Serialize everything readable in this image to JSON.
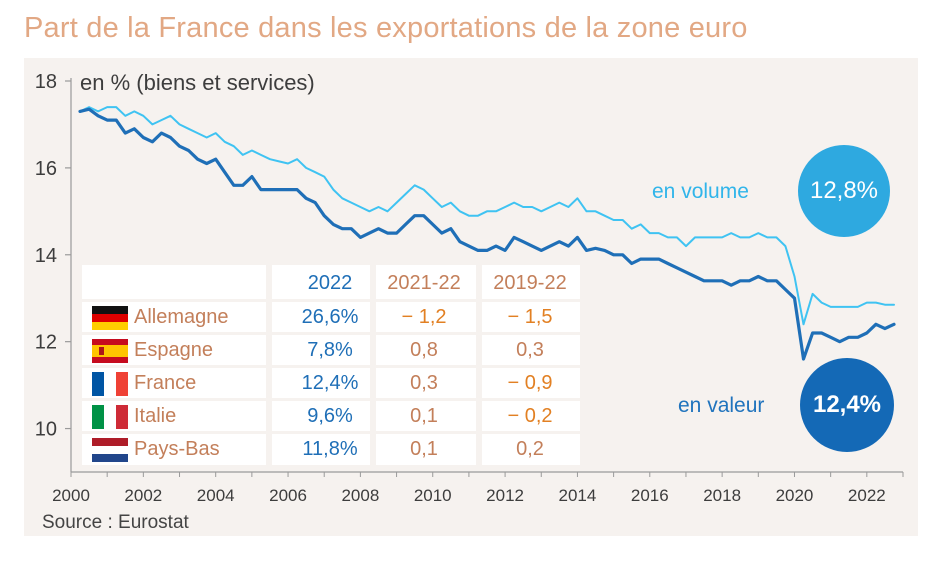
{
  "title": "Part de la France dans les exportations de la zone euro",
  "unit_label": "en % (biens et services)",
  "source": "Source : Eurostat",
  "annotations": {
    "volume_label": "en volume",
    "volume_value": "12,8%",
    "valeur_label": "en valeur",
    "valeur_value": "12,4%"
  },
  "colors": {
    "volume": "#3fc3f2",
    "valeur": "#1f6fb7",
    "title": "#e2a884",
    "panel": "#f6f2ef"
  },
  "table": {
    "headers": [
      "2022",
      "2021-22",
      "2019-22"
    ],
    "rows": [
      {
        "country": "Allemagne",
        "flag": "germany-flag",
        "v2022": "26,6%",
        "d2122": "− 1,2",
        "d1922": "− 1,5"
      },
      {
        "country": "Espagne",
        "flag": "spain-flag",
        "v2022": "7,8%",
        "d2122": "0,8",
        "d1922": "0,3"
      },
      {
        "country": "France",
        "flag": "france-flag",
        "v2022": "12,4%",
        "d2122": "0,3",
        "d1922": "− 0,9"
      },
      {
        "country": "Italie",
        "flag": "italy-flag",
        "v2022": "9,6%",
        "d2122": "0,1",
        "d1922": "− 0,2"
      },
      {
        "country": "Pays-Bas",
        "flag": "netherlands-flag",
        "v2022": "11,8%",
        "d2122": "0,1",
        "d1922": "0,2"
      }
    ]
  },
  "chart_data": {
    "type": "line",
    "title": "Part de la France dans les exportations de la zone euro",
    "ylabel": "en % (biens et services)",
    "xlim": [
      2000,
      2023
    ],
    "ylim": [
      9,
      18
    ],
    "yticks": [
      10,
      12,
      14,
      16,
      18
    ],
    "xticks": [
      2000,
      2002,
      2004,
      2006,
      2008,
      2010,
      2012,
      2014,
      2016,
      2018,
      2020,
      2022
    ],
    "grid": false,
    "series": [
      {
        "name": "en volume",
        "color": "#3fc3f2",
        "x": [
          2000.25,
          2000.5,
          2000.75,
          2001.0,
          2001.25,
          2001.5,
          2001.75,
          2002.0,
          2002.25,
          2002.5,
          2002.75,
          2003.0,
          2003.25,
          2003.5,
          2003.75,
          2004.0,
          2004.25,
          2004.5,
          2004.75,
          2005.0,
          2005.25,
          2005.5,
          2005.75,
          2006.0,
          2006.25,
          2006.5,
          2006.75,
          2007.0,
          2007.25,
          2007.5,
          2007.75,
          2008.0,
          2008.25,
          2008.5,
          2008.75,
          2009.0,
          2009.25,
          2009.5,
          2009.75,
          2010.0,
          2010.25,
          2010.5,
          2010.75,
          2011.0,
          2011.25,
          2011.5,
          2011.75,
          2012.0,
          2012.25,
          2012.5,
          2012.75,
          2013.0,
          2013.25,
          2013.5,
          2013.75,
          2014.0,
          2014.25,
          2014.5,
          2014.75,
          2015.0,
          2015.25,
          2015.5,
          2015.75,
          2016.0,
          2016.25,
          2016.5,
          2016.75,
          2017.0,
          2017.25,
          2017.5,
          2017.75,
          2018.0,
          2018.25,
          2018.5,
          2018.75,
          2019.0,
          2019.25,
          2019.5,
          2019.75,
          2020.0,
          2020.25,
          2020.5,
          2020.75,
          2021.0,
          2021.25,
          2021.5,
          2021.75,
          2022.0,
          2022.25,
          2022.5,
          2022.75
        ],
        "values": [
          17.3,
          17.4,
          17.3,
          17.4,
          17.4,
          17.2,
          17.3,
          17.2,
          17.0,
          17.1,
          17.2,
          17.0,
          16.9,
          16.8,
          16.7,
          16.8,
          16.6,
          16.5,
          16.3,
          16.4,
          16.3,
          16.2,
          16.15,
          16.1,
          16.2,
          16.0,
          15.9,
          15.8,
          15.5,
          15.3,
          15.2,
          15.1,
          15.0,
          15.1,
          15.0,
          15.2,
          15.4,
          15.6,
          15.5,
          15.3,
          15.1,
          15.2,
          15.0,
          14.9,
          14.9,
          15.0,
          15.0,
          15.1,
          15.2,
          15.1,
          15.1,
          15.0,
          15.1,
          15.2,
          15.1,
          15.3,
          15.0,
          15.0,
          14.9,
          14.8,
          14.8,
          14.6,
          14.7,
          14.5,
          14.5,
          14.4,
          14.4,
          14.2,
          14.4,
          14.4,
          14.4,
          14.4,
          14.5,
          14.4,
          14.4,
          14.5,
          14.4,
          14.4,
          14.2,
          13.5,
          12.4,
          13.1,
          12.9,
          12.8,
          12.8,
          12.8,
          12.8,
          12.9,
          12.9,
          12.85,
          12.85
        ]
      },
      {
        "name": "en valeur",
        "color": "#1f6fb7",
        "x": [
          2000.25,
          2000.5,
          2000.75,
          2001.0,
          2001.25,
          2001.5,
          2001.75,
          2002.0,
          2002.25,
          2002.5,
          2002.75,
          2003.0,
          2003.25,
          2003.5,
          2003.75,
          2004.0,
          2004.25,
          2004.5,
          2004.75,
          2005.0,
          2005.25,
          2005.5,
          2005.75,
          2006.0,
          2006.25,
          2006.5,
          2006.75,
          2007.0,
          2007.25,
          2007.5,
          2007.75,
          2008.0,
          2008.25,
          2008.5,
          2008.75,
          2009.0,
          2009.25,
          2009.5,
          2009.75,
          2010.0,
          2010.25,
          2010.5,
          2010.75,
          2011.0,
          2011.25,
          2011.5,
          2011.75,
          2012.0,
          2012.25,
          2012.5,
          2012.75,
          2013.0,
          2013.25,
          2013.5,
          2013.75,
          2014.0,
          2014.25,
          2014.5,
          2014.75,
          2015.0,
          2015.25,
          2015.5,
          2015.75,
          2016.0,
          2016.25,
          2016.5,
          2016.75,
          2017.0,
          2017.25,
          2017.5,
          2017.75,
          2018.0,
          2018.25,
          2018.5,
          2018.75,
          2019.0,
          2019.25,
          2019.5,
          2019.75,
          2020.0,
          2020.25,
          2020.5,
          2020.75,
          2021.0,
          2021.25,
          2021.5,
          2021.75,
          2022.0,
          2022.25,
          2022.5,
          2022.75
        ],
        "values": [
          17.3,
          17.35,
          17.2,
          17.1,
          17.1,
          16.8,
          16.9,
          16.7,
          16.6,
          16.8,
          16.7,
          16.5,
          16.4,
          16.2,
          16.1,
          16.2,
          15.9,
          15.6,
          15.6,
          15.8,
          15.5,
          15.5,
          15.5,
          15.5,
          15.5,
          15.3,
          15.2,
          14.9,
          14.7,
          14.6,
          14.6,
          14.4,
          14.5,
          14.6,
          14.5,
          14.5,
          14.7,
          14.9,
          14.9,
          14.7,
          14.5,
          14.6,
          14.3,
          14.2,
          14.1,
          14.1,
          14.2,
          14.1,
          14.4,
          14.3,
          14.2,
          14.1,
          14.2,
          14.3,
          14.2,
          14.4,
          14.1,
          14.15,
          14.1,
          14.0,
          14.0,
          13.8,
          13.9,
          13.9,
          13.9,
          13.8,
          13.7,
          13.6,
          13.5,
          13.4,
          13.4,
          13.4,
          13.3,
          13.4,
          13.4,
          13.5,
          13.4,
          13.4,
          13.2,
          13.0,
          11.6,
          12.2,
          12.2,
          12.1,
          12.0,
          12.1,
          12.1,
          12.2,
          12.4,
          12.3,
          12.4
        ]
      }
    ]
  }
}
